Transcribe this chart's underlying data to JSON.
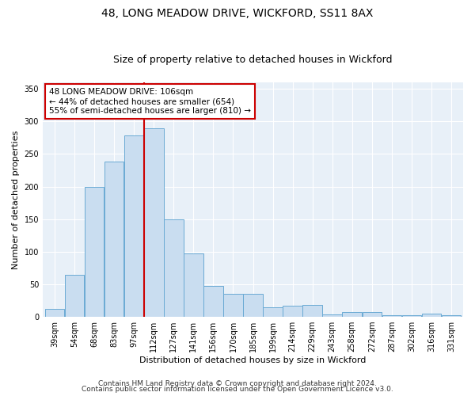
{
  "title": "48, LONG MEADOW DRIVE, WICKFORD, SS11 8AX",
  "subtitle": "Size of property relative to detached houses in Wickford",
  "xlabel": "Distribution of detached houses by size in Wickford",
  "ylabel": "Number of detached properties",
  "categories": [
    "39sqm",
    "54sqm",
    "68sqm",
    "83sqm",
    "97sqm",
    "112sqm",
    "127sqm",
    "141sqm",
    "156sqm",
    "170sqm",
    "185sqm",
    "199sqm",
    "214sqm",
    "229sqm",
    "243sqm",
    "258sqm",
    "272sqm",
    "287sqm",
    "302sqm",
    "316sqm",
    "331sqm"
  ],
  "values": [
    12,
    65,
    200,
    238,
    278,
    290,
    150,
    97,
    48,
    35,
    35,
    15,
    17,
    18,
    4,
    8,
    8,
    2,
    2,
    5,
    3
  ],
  "bar_color": "#c9ddf0",
  "bar_edge_color": "#6aaad4",
  "vline_color": "#cc0000",
  "vline_x_index": 4.5,
  "ylim": [
    0,
    360
  ],
  "yticks": [
    0,
    50,
    100,
    150,
    200,
    250,
    300,
    350
  ],
  "annotation_box_text_line1": "48 LONG MEADOW DRIVE: 106sqm",
  "annotation_box_text_line2": "← 44% of detached houses are smaller (654)",
  "annotation_box_text_line3": "55% of semi-detached houses are larger (810) →",
  "footer_line1": "Contains HM Land Registry data © Crown copyright and database right 2024.",
  "footer_line2": "Contains public sector information licensed under the Open Government Licence v3.0.",
  "bg_color": "#e8f0f8",
  "fig_bg_color": "#ffffff",
  "title_fontsize": 10,
  "subtitle_fontsize": 9,
  "axis_label_fontsize": 8,
  "tick_fontsize": 7,
  "annotation_fontsize": 7.5,
  "footer_fontsize": 6.5
}
